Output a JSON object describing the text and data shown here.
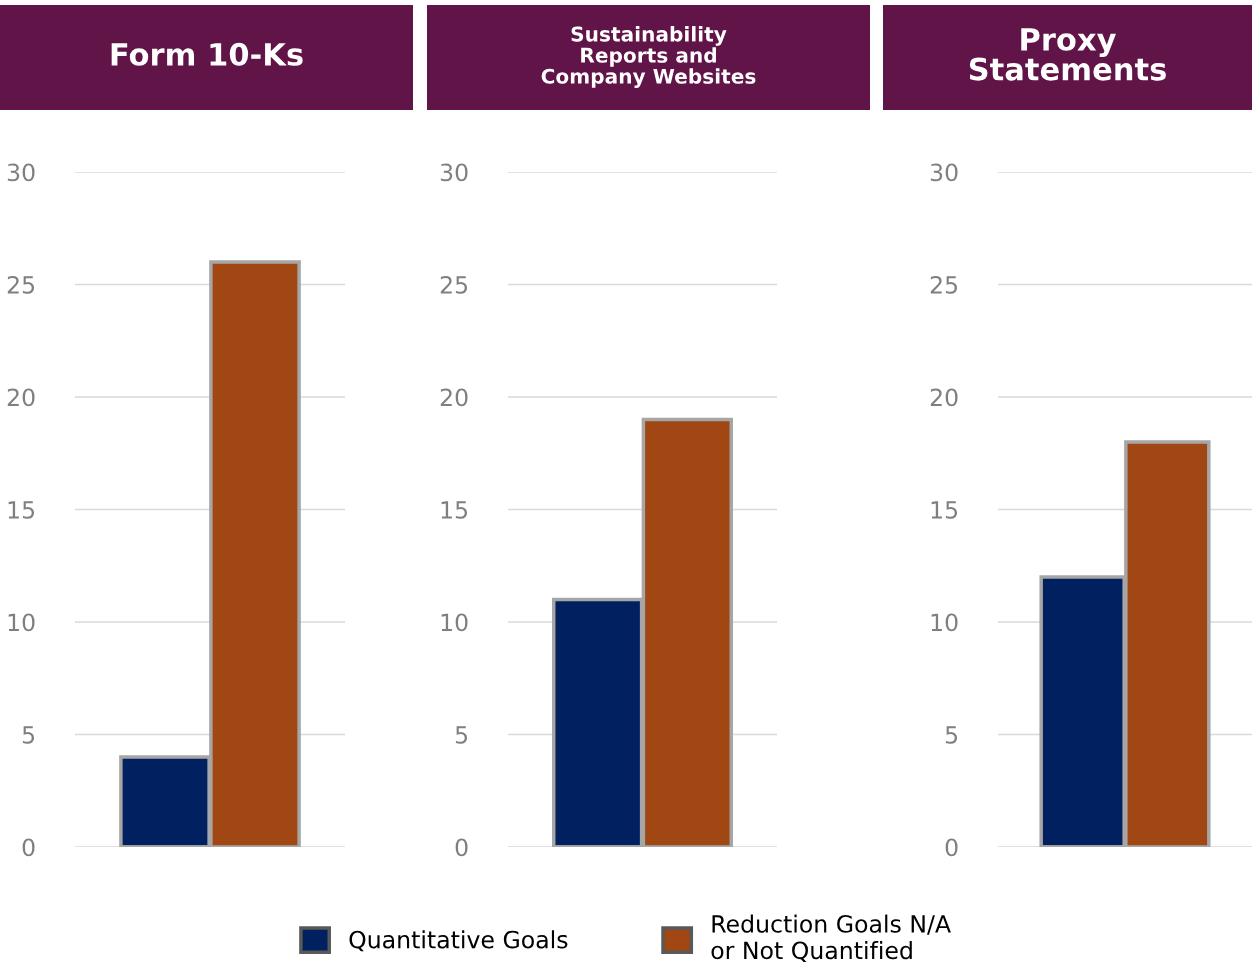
{
  "chart_data": [
    {
      "type": "bar",
      "title": "Form 10-Ks",
      "categories": [
        null,
        null
      ],
      "series": [
        {
          "name": "Quantitative Goals",
          "color": "#002060",
          "values": [
            4,
            null
          ]
        },
        {
          "name": "Reduction Goals N/A\nor Not Quantified",
          "color": "#a04714",
          "values": [
            null,
            26
          ]
        }
      ],
      "ylim": [
        0,
        30
      ],
      "yticks": [
        0,
        5,
        10,
        15,
        20,
        25,
        30
      ],
      "grid": "y",
      "legend": "bottom"
    },
    {
      "type": "bar",
      "title": "Sustainability\nReports and\nCompany Websites",
      "categories": [
        null,
        null
      ],
      "series": [
        {
          "color": "#002060",
          "values": [
            11,
            null
          ]
        },
        {
          "color": "#a04714",
          "values": [
            null,
            19
          ]
        }
      ],
      "ylim": [
        0,
        30
      ],
      "yticks": [
        0,
        5,
        10,
        15,
        20,
        25,
        30
      ],
      "grid": "y"
    },
    {
      "type": "bar",
      "title": "Proxy\nStatements",
      "categories": [
        null,
        null
      ],
      "series": [
        {
          "color": "#002060",
          "values": [
            12,
            null
          ]
        },
        {
          "color": "#a04714",
          "values": [
            null,
            18
          ]
        }
      ],
      "ylim": [
        0,
        30
      ],
      "yticks": [
        0,
        5,
        10,
        15,
        20,
        25,
        30
      ],
      "grid": "y"
    }
  ]
}
